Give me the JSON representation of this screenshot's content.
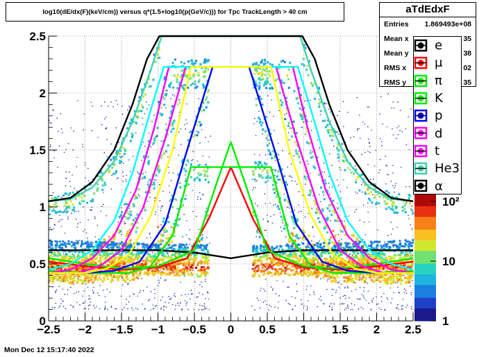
{
  "title": "log10(dE/dx(F)(keV/cm)) versus q*(1.5+log10(p(GeV/c))) for Tpc TrackLength > 40 cm",
  "stats": {
    "name": "aTdEdxF",
    "rows": [
      {
        "label": "Entries",
        "value": "1.869493e+08"
      },
      {
        "label": "Mean x",
        "value": "35"
      },
      {
        "label": "Mean y",
        "value": "38"
      },
      {
        "label": "RMS x",
        "value": "02"
      },
      {
        "label": "RMS y",
        "value": "35"
      }
    ]
  },
  "legend": [
    {
      "label": "e",
      "color": "#000000"
    },
    {
      "label": "μ",
      "color": "#ff0000"
    },
    {
      "label": "π",
      "color": "#00ee00"
    },
    {
      "label": "K",
      "color": "#00ee00"
    },
    {
      "label": "p",
      "color": "#0000ff"
    },
    {
      "label": "d",
      "color": "#ff00ff"
    },
    {
      "label": "t",
      "color": "#ff00ff"
    },
    {
      "label": "He3",
      "color": "#40d0b0"
    },
    {
      "label": "α",
      "color": "#000000"
    }
  ],
  "timestamp": "Mon Dec 12 15:17:40 2022",
  "chart_data": {
    "type": "heatmap",
    "xlim": [
      -2.5,
      2.5
    ],
    "ylim": [
      0,
      2.5
    ],
    "x_ticks": [
      -2.5,
      -2,
      -1.5,
      -1,
      -0.5,
      0,
      0.5,
      1,
      1.5,
      2,
      2.5
    ],
    "x_tick_labels": [
      "−2.5",
      "−2",
      "−1.5",
      "−1",
      "−0.5",
      "0",
      "0.5",
      "1",
      "1.5",
      "2",
      "2.5"
    ],
    "y_ticks": [
      0,
      0.5,
      1,
      1.5,
      2,
      2.5
    ],
    "y_tick_labels": [
      "0",
      "0.5",
      "1",
      "1.5",
      "2",
      "2.5"
    ],
    "grid": true,
    "z_scale": "log",
    "z_tick_labels": [
      "1",
      "10",
      "10²"
    ],
    "curves": [
      {
        "name": "e",
        "color": "#000000",
        "x": [
          -2.5,
          -1.5,
          -1.0,
          -0.5,
          0.0,
          0.5,
          1.0,
          1.5,
          2.5
        ],
        "y": [
          0.62,
          0.62,
          0.62,
          0.6,
          0.55,
          0.6,
          0.62,
          0.62,
          0.62
        ]
      },
      {
        "name": "μ",
        "color": "#ff0000",
        "x": [
          -2.5,
          -2.0,
          -1.5,
          -1.0,
          -0.6,
          -0.3,
          0.0,
          0.3,
          0.6,
          1.0,
          1.5,
          2.0,
          2.5
        ],
        "y": [
          0.52,
          0.48,
          0.45,
          0.47,
          0.55,
          0.9,
          1.35,
          0.9,
          0.55,
          0.47,
          0.45,
          0.48,
          0.52
        ]
      },
      {
        "name": "π",
        "color": "#00ee00",
        "x": [
          -2.5,
          -2.0,
          -1.5,
          -1.0,
          -0.5,
          -0.2,
          0.0,
          0.2,
          0.5,
          1.0,
          1.5,
          2.0,
          2.5
        ],
        "y": [
          0.55,
          0.5,
          0.46,
          0.48,
          0.62,
          1.2,
          1.57,
          1.2,
          0.62,
          0.48,
          0.46,
          0.5,
          0.55
        ]
      },
      {
        "name": "K",
        "color": "#00ee00",
        "x": [
          -2.5,
          -2.0,
          -1.7,
          -1.4,
          -1.1,
          -0.8,
          -0.55,
          0.55,
          0.8,
          1.1,
          1.4,
          1.7,
          2.0,
          2.5
        ],
        "y": [
          0.44,
          0.42,
          0.42,
          0.42,
          0.48,
          0.75,
          1.35,
          1.35,
          0.75,
          0.48,
          0.42,
          0.42,
          0.42,
          0.44
        ]
      },
      {
        "name": "p",
        "color": "#0000ff",
        "x": [
          -2.5,
          -2.0,
          -1.6,
          -1.25,
          -0.9,
          -0.6,
          -0.25,
          0.25,
          0.6,
          0.9,
          1.25,
          1.6,
          2.0,
          2.5
        ],
        "y": [
          0.42,
          0.42,
          0.44,
          0.52,
          0.85,
          1.5,
          2.23,
          2.23,
          1.5,
          0.85,
          0.52,
          0.44,
          0.42,
          0.42
        ]
      },
      {
        "name": "d",
        "color": "#ff00ff",
        "x": [
          -2.5,
          -2.1,
          -1.8,
          -1.5,
          -1.2,
          -0.9,
          -0.62,
          0.62,
          0.9,
          1.2,
          1.5,
          1.8,
          2.1,
          2.5
        ],
        "y": [
          0.42,
          0.42,
          0.48,
          0.62,
          1.0,
          1.6,
          2.23,
          2.23,
          1.6,
          1.0,
          0.62,
          0.48,
          0.42,
          0.42
        ]
      },
      {
        "name": "t",
        "color": "#ff00ff",
        "x": [
          -2.5,
          -2.2,
          -1.9,
          -1.6,
          -1.3,
          -1.05,
          -0.85,
          0.85,
          1.05,
          1.3,
          1.6,
          1.9,
          2.2,
          2.5
        ],
        "y": [
          0.42,
          0.45,
          0.55,
          0.75,
          1.15,
          1.7,
          2.23,
          2.23,
          1.7,
          1.15,
          0.75,
          0.55,
          0.45,
          0.42
        ]
      },
      {
        "name": "He3",
        "color": "#40d0b0",
        "x": [
          -2.5,
          -2.2,
          -1.9,
          -1.6,
          -1.35,
          -1.1,
          -0.95,
          0.95,
          1.1,
          1.35,
          1.6,
          1.9,
          2.2,
          2.5
        ],
        "y": [
          1.05,
          1.07,
          1.17,
          1.4,
          1.75,
          2.2,
          2.5,
          2.5,
          2.2,
          1.75,
          1.4,
          1.17,
          1.07,
          1.05
        ]
      },
      {
        "name": "α",
        "color": "#000000",
        "x": [
          -2.5,
          -2.2,
          -1.9,
          -1.6,
          -1.35,
          -1.15,
          -0.98,
          0.98,
          1.15,
          1.35,
          1.6,
          1.9,
          2.2,
          2.5
        ],
        "y": [
          1.05,
          1.08,
          1.22,
          1.5,
          1.9,
          2.3,
          2.5,
          2.5,
          2.3,
          1.9,
          1.5,
          1.22,
          1.08,
          1.05
        ]
      },
      {
        "name": "",
        "color": "#00ffff",
        "x": [
          -2.5,
          -2.2,
          -1.9,
          -1.6,
          -1.35,
          -1.1,
          -0.92,
          0.92,
          1.1,
          1.35,
          1.6,
          1.9,
          2.2,
          2.5
        ],
        "y": [
          0.45,
          0.5,
          0.62,
          0.88,
          1.3,
          1.85,
          2.23,
          2.23,
          1.85,
          1.3,
          0.88,
          0.62,
          0.5,
          0.45
        ]
      },
      {
        "name": "",
        "color": "#ffff00",
        "x": [
          -2.5,
          -2.0,
          -1.7,
          -1.4,
          -1.1,
          -0.8,
          -0.55,
          0.55,
          0.8,
          1.1,
          1.4,
          1.7,
          2.0,
          2.5
        ],
        "y": [
          0.42,
          0.42,
          0.46,
          0.58,
          0.92,
          1.5,
          2.23,
          2.23,
          1.5,
          0.92,
          0.58,
          0.46,
          0.42,
          0.42
        ]
      }
    ],
    "bands": [
      {
        "x0": -2.5,
        "x1": -0.3,
        "y_low": [
          0.46,
          0.44,
          0.42,
          0.45,
          0.55
        ],
        "peak": true
      },
      {
        "x0": 0.3,
        "x1": 2.5,
        "y_low": [
          0.55,
          0.45,
          0.42,
          0.44,
          0.46
        ],
        "peak": true
      }
    ]
  }
}
